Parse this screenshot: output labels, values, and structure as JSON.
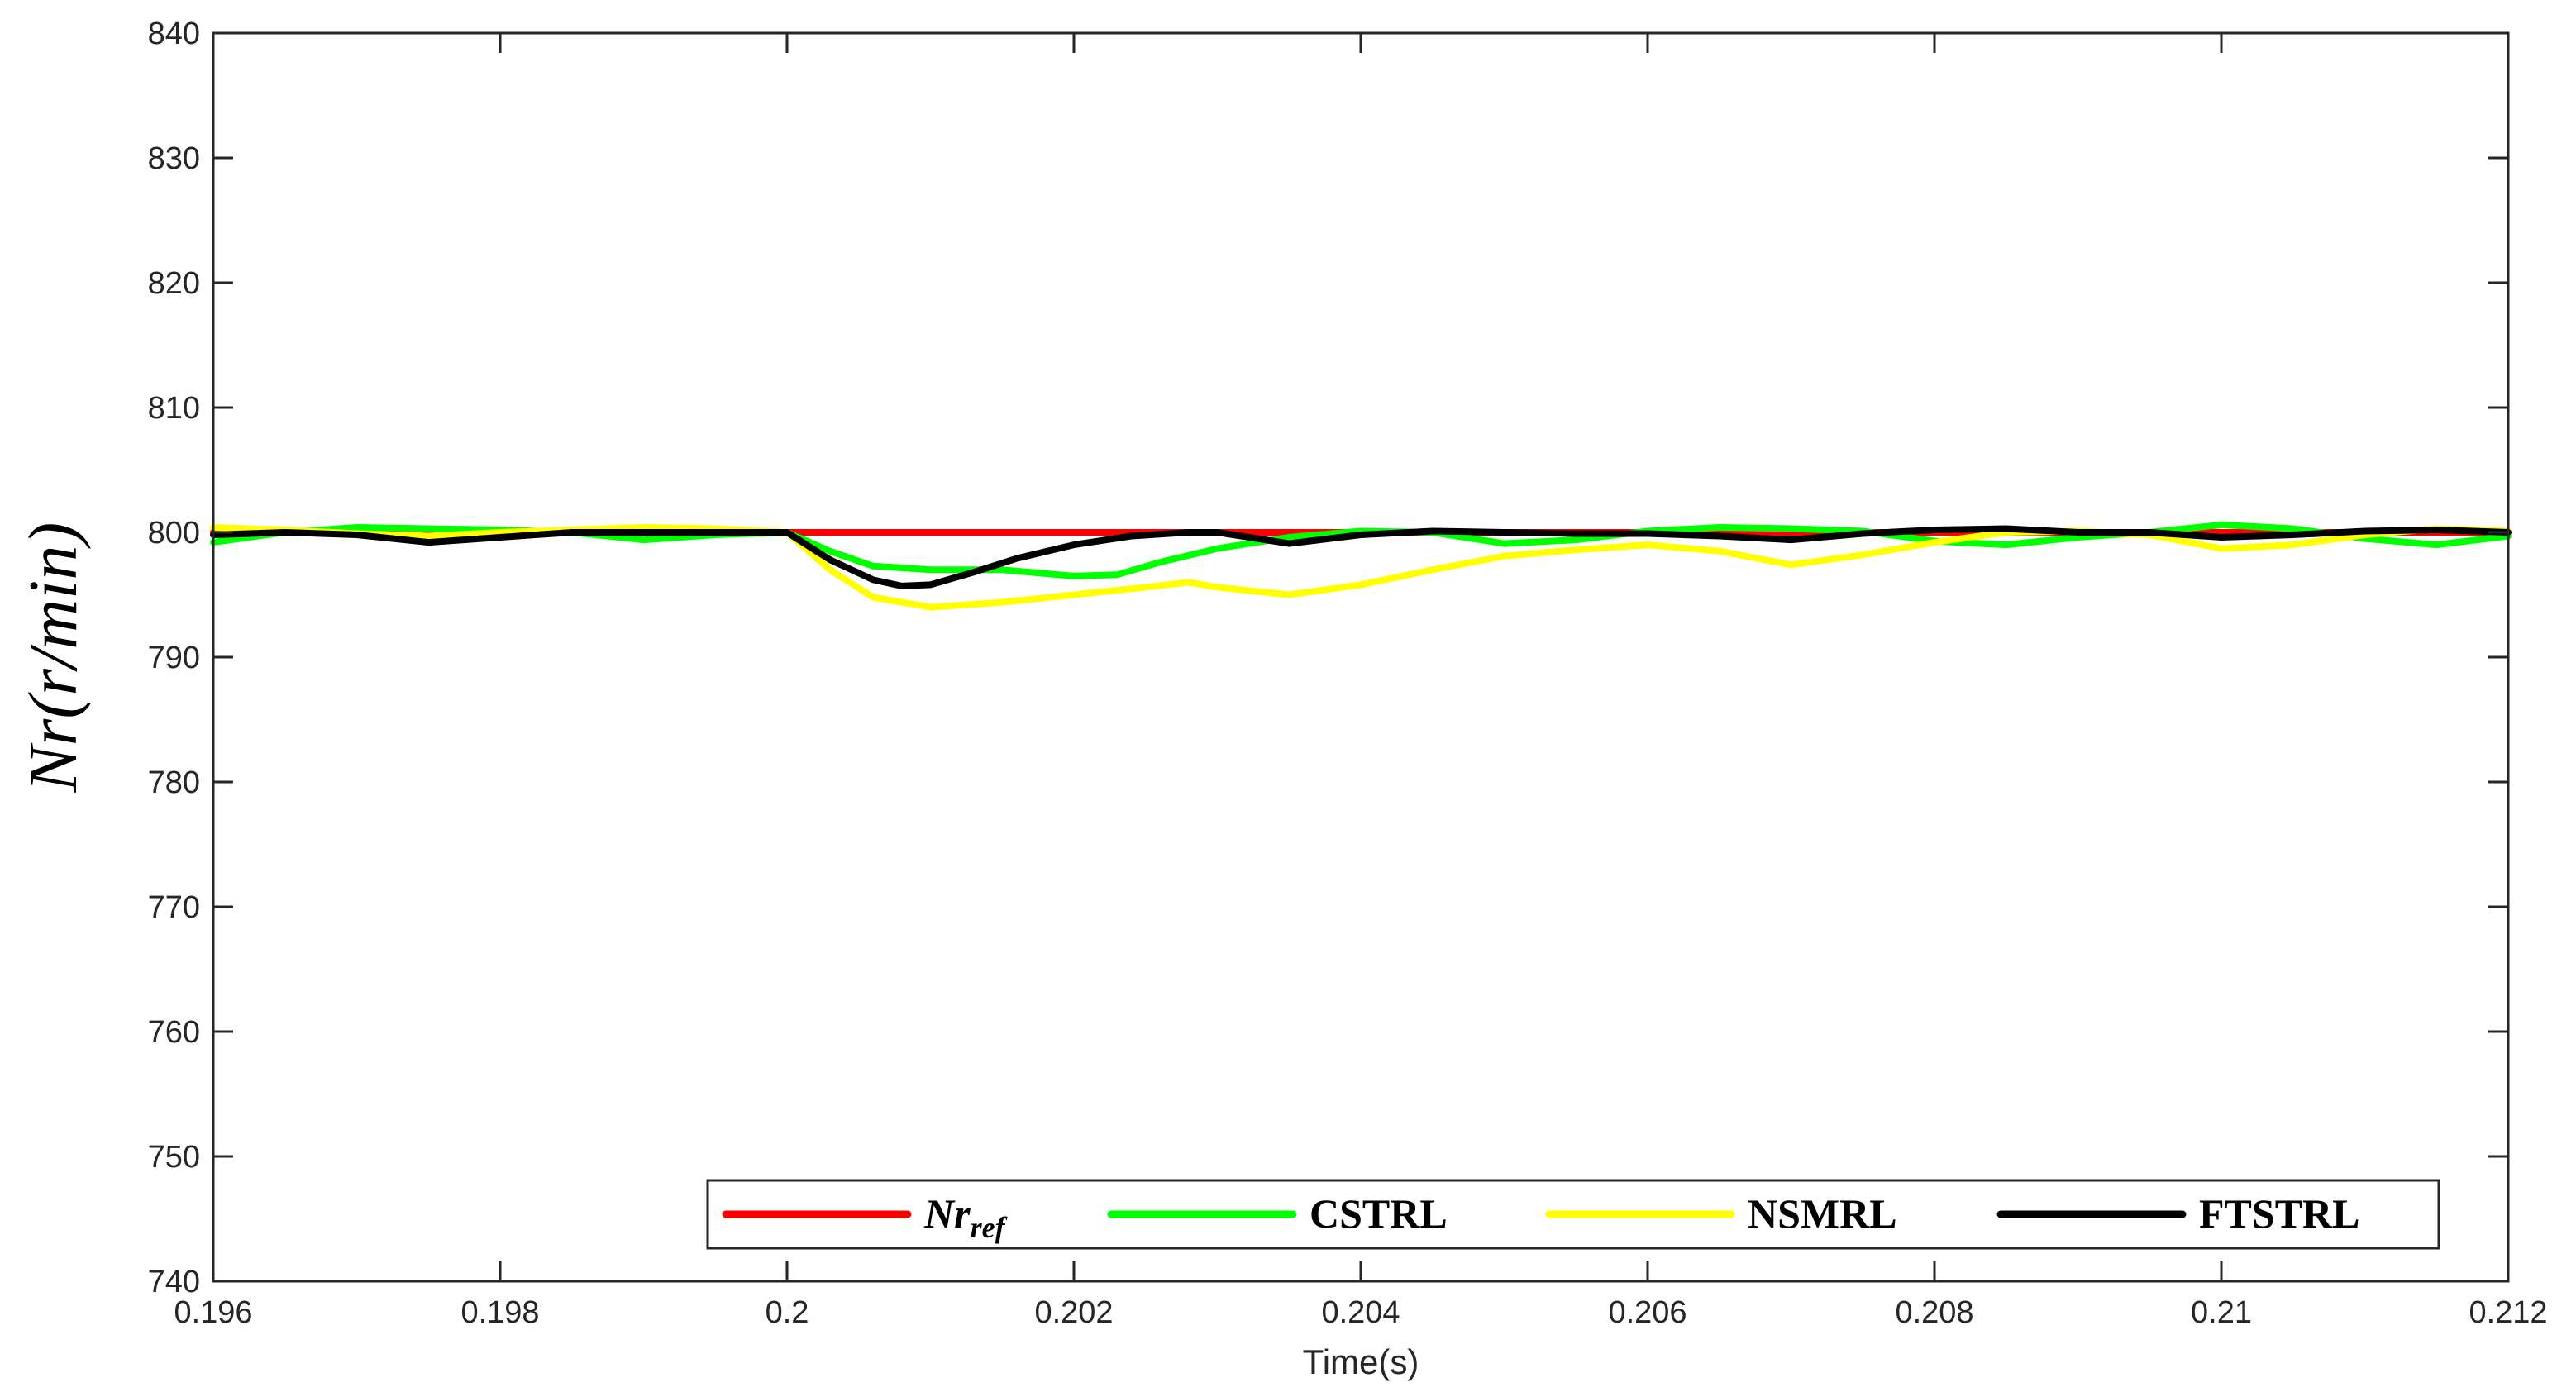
{
  "chart_data": {
    "type": "line",
    "title": "",
    "xlabel": "Time(s)",
    "ylabel": "Nr(r/min)",
    "xlim": [
      0.196,
      0.212
    ],
    "ylim": [
      740,
      840
    ],
    "xticks": [
      0.196,
      0.198,
      0.2,
      0.202,
      0.204,
      0.206,
      0.208,
      0.21,
      0.212
    ],
    "xtick_labels": [
      "0.196",
      "0.198",
      "0.2",
      "0.202",
      "0.204",
      "0.206",
      "0.208",
      "0.21",
      "0.212"
    ],
    "yticks": [
      740,
      750,
      760,
      770,
      780,
      790,
      800,
      810,
      820,
      830,
      840
    ],
    "ytick_labels": [
      "740",
      "750",
      "760",
      "770",
      "780",
      "790",
      "800",
      "810",
      "820",
      "830",
      "840"
    ],
    "grid": false,
    "legend_position": "bottom-right",
    "legend_layout": "horizontal",
    "series": [
      {
        "name": "Nr_ref",
        "label_main": "Nr",
        "label_sub": "ref",
        "color": "#ff0000",
        "x": [
          0.196,
          0.2,
          0.212
        ],
        "y": [
          800,
          800,
          800
        ]
      },
      {
        "name": "CSTRL",
        "color": "#00ff00",
        "x": [
          0.196,
          0.1965,
          0.197,
          0.1975,
          0.198,
          0.1985,
          0.199,
          0.1995,
          0.2,
          0.2003,
          0.2006,
          0.201,
          0.2015,
          0.202,
          0.2023,
          0.2026,
          0.203,
          0.2035,
          0.204,
          0.2045,
          0.205,
          0.2055,
          0.206,
          0.2065,
          0.207,
          0.2075,
          0.208,
          0.2085,
          0.209,
          0.2095,
          0.21,
          0.2105,
          0.211,
          0.2115,
          0.212
        ],
        "y": [
          799.2,
          800.0,
          800.4,
          800.3,
          800.2,
          800.0,
          799.4,
          799.8,
          800.0,
          798.5,
          797.3,
          797.0,
          797.0,
          796.5,
          796.6,
          797.6,
          798.7,
          799.6,
          800.1,
          800.0,
          799.1,
          799.4,
          800.1,
          800.4,
          800.3,
          800.1,
          799.3,
          799.0,
          799.6,
          800.0,
          800.6,
          800.3,
          799.5,
          799.0,
          799.7
        ]
      },
      {
        "name": "NSMRL",
        "color": "#ffff00",
        "x": [
          0.196,
          0.1965,
          0.197,
          0.1975,
          0.198,
          0.1985,
          0.199,
          0.1995,
          0.2,
          0.2003,
          0.2006,
          0.201,
          0.2015,
          0.202,
          0.2025,
          0.2028,
          0.203,
          0.2035,
          0.204,
          0.2045,
          0.205,
          0.2055,
          0.206,
          0.2065,
          0.207,
          0.2075,
          0.208,
          0.2085,
          0.209,
          0.2095,
          0.21,
          0.2105,
          0.211,
          0.2115,
          0.212
        ],
        "y": [
          800.4,
          800.2,
          799.9,
          799.7,
          800.0,
          800.2,
          800.4,
          800.3,
          800.0,
          797.0,
          794.8,
          794.0,
          794.4,
          795.0,
          795.6,
          796.0,
          795.6,
          795.0,
          795.8,
          797.0,
          798.1,
          798.6,
          799.0,
          798.5,
          797.4,
          798.2,
          799.2,
          800.0,
          800.1,
          799.8,
          798.7,
          799.0,
          799.8,
          800.3,
          800.1
        ]
      },
      {
        "name": "FTSTRL",
        "color": "#000000",
        "x": [
          0.196,
          0.1965,
          0.197,
          0.1975,
          0.198,
          0.1985,
          0.199,
          0.1995,
          0.2,
          0.2003,
          0.2006,
          0.2008,
          0.201,
          0.2013,
          0.2016,
          0.202,
          0.2024,
          0.2028,
          0.203,
          0.2035,
          0.204,
          0.2045,
          0.205,
          0.2055,
          0.206,
          0.2065,
          0.207,
          0.2075,
          0.208,
          0.2085,
          0.209,
          0.2095,
          0.21,
          0.2105,
          0.211,
          0.2115,
          0.212
        ],
        "y": [
          799.8,
          800.0,
          799.8,
          799.2,
          799.6,
          800.0,
          800.0,
          800.0,
          800.0,
          797.8,
          796.2,
          795.7,
          795.8,
          796.8,
          797.9,
          799.0,
          799.7,
          800.0,
          800.0,
          799.1,
          799.8,
          800.1,
          800.0,
          799.9,
          799.9,
          799.7,
          799.4,
          799.9,
          800.2,
          800.3,
          800.0,
          800.0,
          799.6,
          799.8,
          800.1,
          800.2,
          800.0
        ]
      }
    ]
  }
}
